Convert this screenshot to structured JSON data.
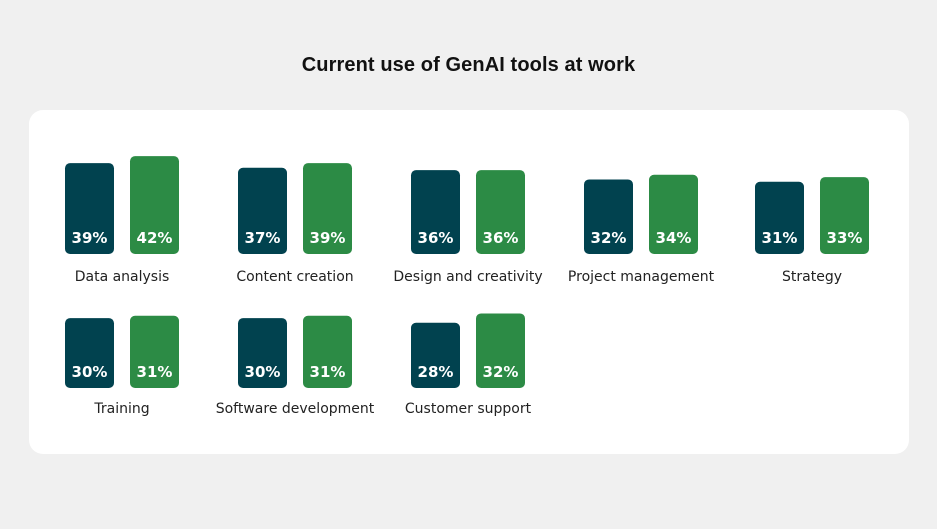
{
  "title": "Current use of GenAI tools at work",
  "colors": {
    "series_a": "#01424f",
    "series_b": "#2c8b45",
    "background": "#f0f0f0",
    "card": "#ffffff",
    "bar_label": "#ffffff",
    "category_label": "#222222"
  },
  "chart_data": {
    "type": "bar",
    "title": "Current use of GenAI tools at work",
    "xlabel": "",
    "ylabel": "",
    "grid": false,
    "legend": "none",
    "categories": [
      "Data analysis",
      "Content creation",
      "Design and creativity",
      "Project management",
      "Strategy",
      "Training",
      "Software development",
      "Customer support"
    ],
    "series": [
      {
        "color": "#01424f",
        "values": [
          39,
          37,
          36,
          32,
          31,
          30,
          30,
          28
        ],
        "labels": [
          "39%",
          "37%",
          "36%",
          "32%",
          "31%",
          "30%",
          "30%",
          "28%"
        ]
      },
      {
        "color": "#2c8b45",
        "values": [
          42,
          39,
          36,
          34,
          33,
          31,
          31,
          32
        ],
        "labels": [
          "42%",
          "39%",
          "36%",
          "34%",
          "33%",
          "31%",
          "31%",
          "32%"
        ]
      }
    ]
  }
}
